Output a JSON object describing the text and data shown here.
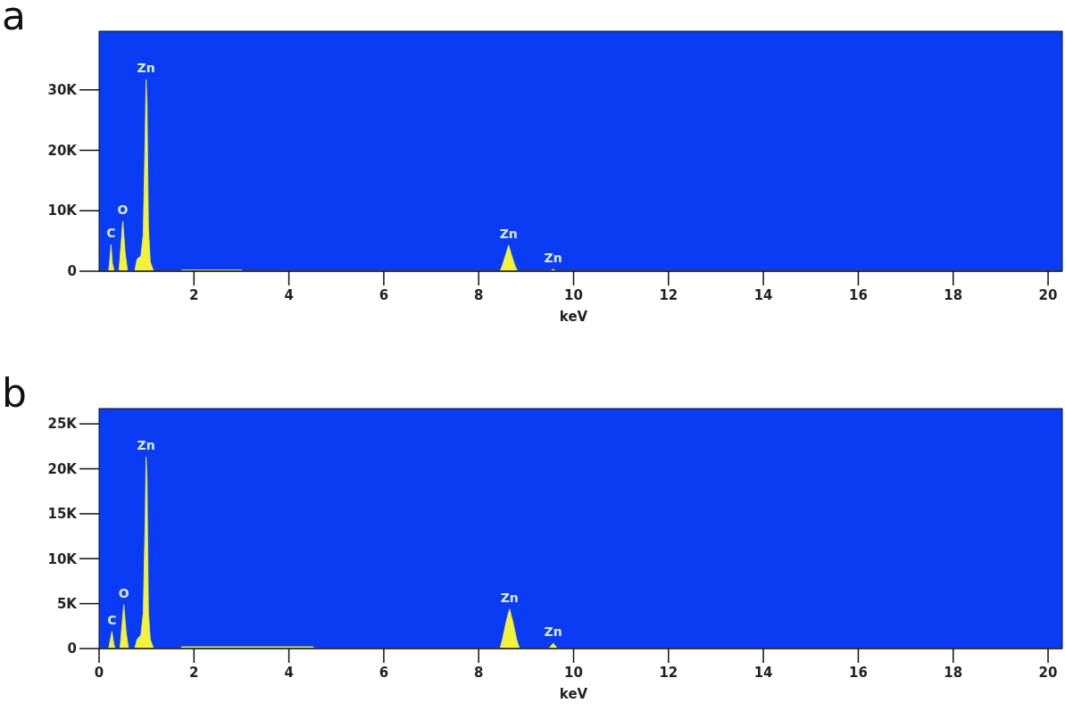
{
  "chart_data": [
    {
      "type": "area",
      "title": "a",
      "xlabel": "keV",
      "xlim": [
        0,
        20.3
      ],
      "xticks": [
        2,
        4,
        6,
        8,
        10,
        12,
        14,
        16,
        18,
        20
      ],
      "ylim": [
        0,
        39700
      ],
      "yticks": [
        {
          "value": 0,
          "label": "0"
        },
        {
          "value": 10000,
          "label": "10K"
        },
        {
          "value": 20000,
          "label": "20K"
        },
        {
          "value": 30000,
          "label": "30K"
        }
      ],
      "grid": false,
      "series": [
        {
          "color": "#f2f23a",
          "x": [
            0,
            0.2,
            0.22,
            0.25,
            0.28,
            0.32,
            0.42,
            0.45,
            0.5,
            0.55,
            0.6,
            0.75,
            0.8,
            0.88,
            0.93,
            0.97,
            0.99,
            1.01,
            1.04,
            1.08,
            1.15,
            1.7,
            1.75,
            3.0,
            3.05,
            8.45,
            8.5,
            8.58,
            8.63,
            8.68,
            8.76,
            8.82,
            9.5,
            9.57,
            9.64,
            20.3
          ],
          "values": [
            0,
            0,
            1300,
            4400,
            1300,
            0,
            0,
            3200,
            8300,
            3000,
            0,
            0,
            2000,
            2500,
            6000,
            22000,
            31700,
            28000,
            7000,
            1500,
            0,
            0,
            200,
            200,
            0,
            0,
            1000,
            3000,
            4300,
            3000,
            1000,
            0,
            0,
            300,
            0,
            0
          ]
        }
      ],
      "annotations": [
        {
          "text": "C",
          "x": 0.25,
          "y": 4400
        },
        {
          "text": "O",
          "x": 0.5,
          "y": 8300
        },
        {
          "text": "Zn",
          "x": 0.99,
          "y": 31700
        },
        {
          "text": "Zn",
          "x": 8.63,
          "y": 4300
        },
        {
          "text": "Zn",
          "x": 9.57,
          "y": 300
        }
      ]
    },
    {
      "type": "area",
      "title": "b",
      "xlabel": "keV",
      "xlim": [
        0,
        20.3
      ],
      "xticks": [
        0,
        2,
        4,
        6,
        8,
        10,
        12,
        14,
        16,
        18,
        20
      ],
      "ylim": [
        0,
        26700
      ],
      "yticks": [
        {
          "value": 0,
          "label": "0"
        },
        {
          "value": 5000,
          "label": "5K"
        },
        {
          "value": 10000,
          "label": "10K"
        },
        {
          "value": 15000,
          "label": "15K"
        },
        {
          "value": 20000,
          "label": "20K"
        },
        {
          "value": 25000,
          "label": "25K"
        }
      ],
      "grid": false,
      "series": [
        {
          "color": "#f2f23a",
          "x": [
            0,
            0.2,
            0.22,
            0.27,
            0.31,
            0.34,
            0.44,
            0.47,
            0.52,
            0.57,
            0.62,
            0.75,
            0.8,
            0.88,
            0.93,
            0.97,
            0.99,
            1.01,
            1.04,
            1.08,
            1.15,
            1.7,
            1.75,
            4.5,
            4.55,
            8.45,
            8.5,
            8.58,
            8.65,
            8.72,
            8.8,
            8.86,
            9.48,
            9.57,
            9.66,
            20.3
          ],
          "values": [
            0,
            0,
            500,
            1900,
            500,
            0,
            0,
            1800,
            4900,
            1800,
            0,
            0,
            1000,
            1500,
            3900,
            14000,
            21300,
            19000,
            4000,
            1000,
            0,
            0,
            200,
            200,
            0,
            0,
            1000,
            3000,
            4400,
            3000,
            1000,
            0,
            0,
            600,
            0,
            0
          ]
        }
      ],
      "annotations": [
        {
          "text": "C",
          "x": 0.27,
          "y": 1900
        },
        {
          "text": "O",
          "x": 0.52,
          "y": 4900
        },
        {
          "text": "Zn",
          "x": 0.99,
          "y": 21300
        },
        {
          "text": "Zn",
          "x": 8.65,
          "y": 4400
        },
        {
          "text": "Zn",
          "x": 9.57,
          "y": 600
        }
      ]
    }
  ]
}
